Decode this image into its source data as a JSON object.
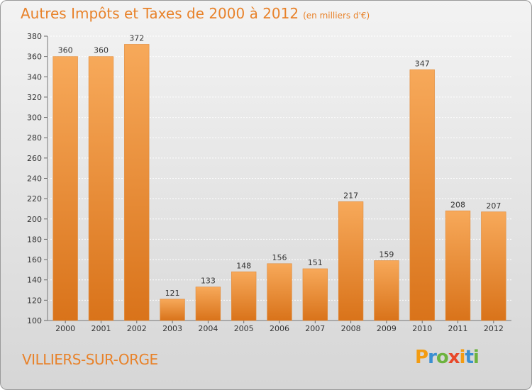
{
  "title": "Autres Impôts et Taxes de 2000 à 2012",
  "unit_label": "(en milliers d'€)",
  "location": "VILLIERS-SUR-ORGE",
  "brand": "Proxiti",
  "colors": {
    "accent": "#e8822a",
    "bar_light": "#f7a95a",
    "bar_dark": "#d9731a"
  },
  "chart_data": {
    "type": "bar",
    "title": "Autres Impôts et Taxes de 2000 à 2012",
    "xlabel": "",
    "ylabel": "",
    "categories": [
      "2000",
      "2001",
      "2002",
      "2003",
      "2004",
      "2005",
      "2006",
      "2007",
      "2008",
      "2009",
      "2010",
      "2011",
      "2012"
    ],
    "values": [
      360,
      360,
      372,
      121,
      133,
      148,
      156,
      151,
      217,
      159,
      347,
      208,
      207
    ],
    "ylim": [
      100,
      380
    ],
    "yticks": [
      100,
      120,
      140,
      160,
      180,
      200,
      220,
      240,
      260,
      280,
      300,
      320,
      340,
      360,
      380
    ],
    "grid": true
  }
}
